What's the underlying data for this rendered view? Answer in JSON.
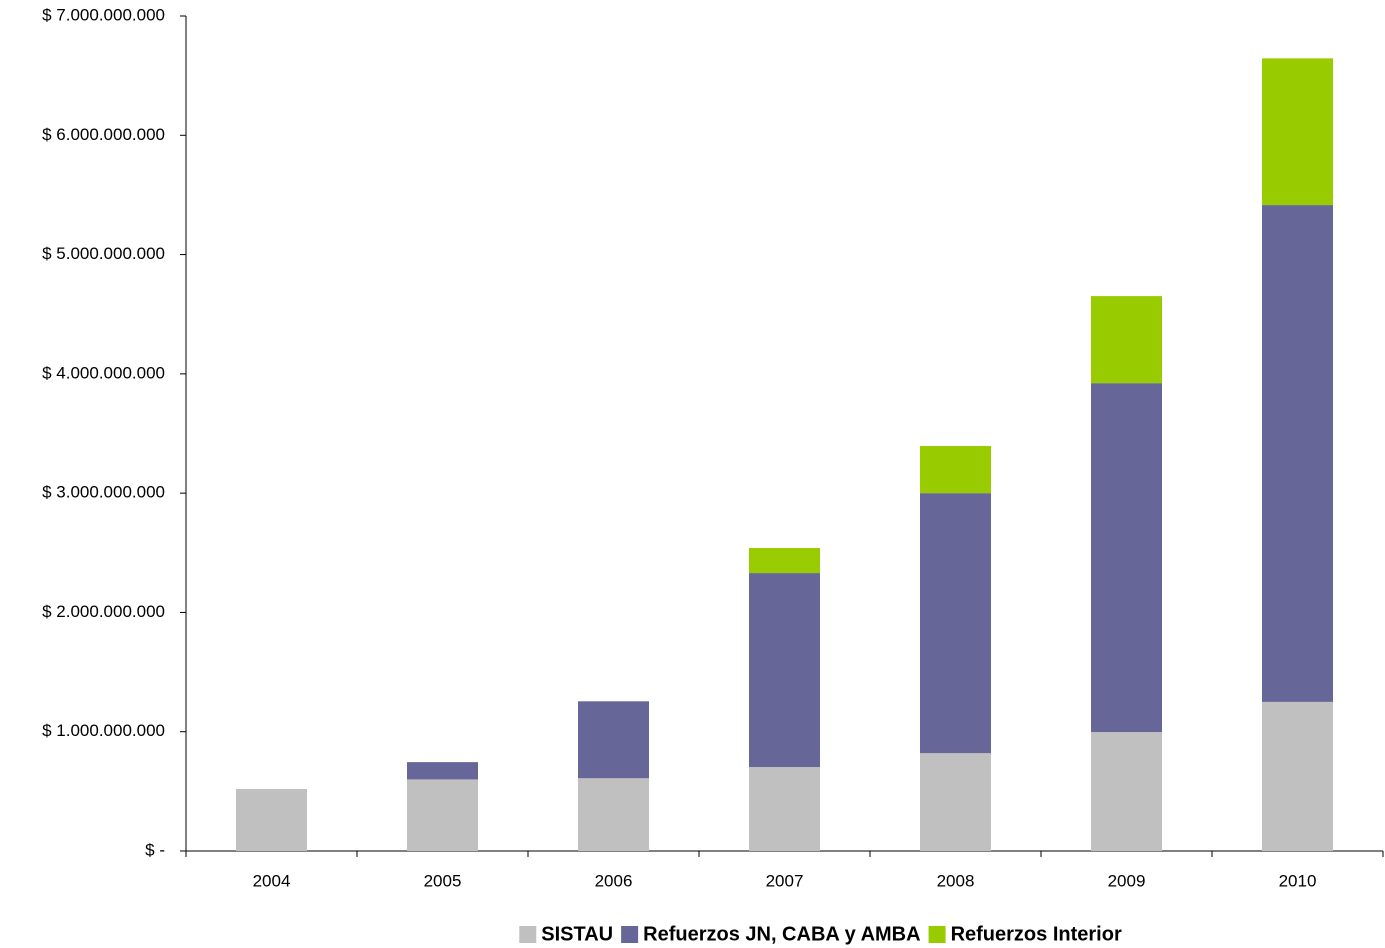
{
  "chart_data": {
    "type": "stacked_bar",
    "categories": [
      "2004",
      "2005",
      "2006",
      "2007",
      "2008",
      "2009",
      "2010"
    ],
    "series": [
      {
        "name": "SISTAU",
        "color": "#c0c0c0",
        "values": [
          520000000,
          600000000,
          610000000,
          704000000,
          820000000,
          997000000,
          1250000000
        ]
      },
      {
        "name": "Refuerzos JN, CABA y AMBA",
        "color": "#666699",
        "values": [
          null,
          145000000,
          645000000,
          1626000000,
          2180000000,
          2925000000,
          4165000000
        ]
      },
      {
        "name": "Refuerzos Interior",
        "color": "#99cc00",
        "values": [
          null,
          null,
          null,
          210000000,
          395000000,
          730000000,
          1230000000
        ]
      }
    ],
    "ylim": [
      0,
      7000000000
    ],
    "yticks": [
      {
        "value": 0,
        "label": "$ -"
      },
      {
        "value": 1000000000,
        "label": "$ 1.000.000.000"
      },
      {
        "value": 2000000000,
        "label": "$ 2.000.000.000"
      },
      {
        "value": 3000000000,
        "label": "$ 3.000.000.000"
      },
      {
        "value": 4000000000,
        "label": "$ 4.000.000.000"
      },
      {
        "value": 5000000000,
        "label": "$ 5.000.000.000"
      },
      {
        "value": 6000000000,
        "label": "$ 6.000.000.000"
      },
      {
        "value": 7000000000,
        "label": "$ 7.000.000.000"
      }
    ],
    "grid": false,
    "legend": "bottom"
  }
}
